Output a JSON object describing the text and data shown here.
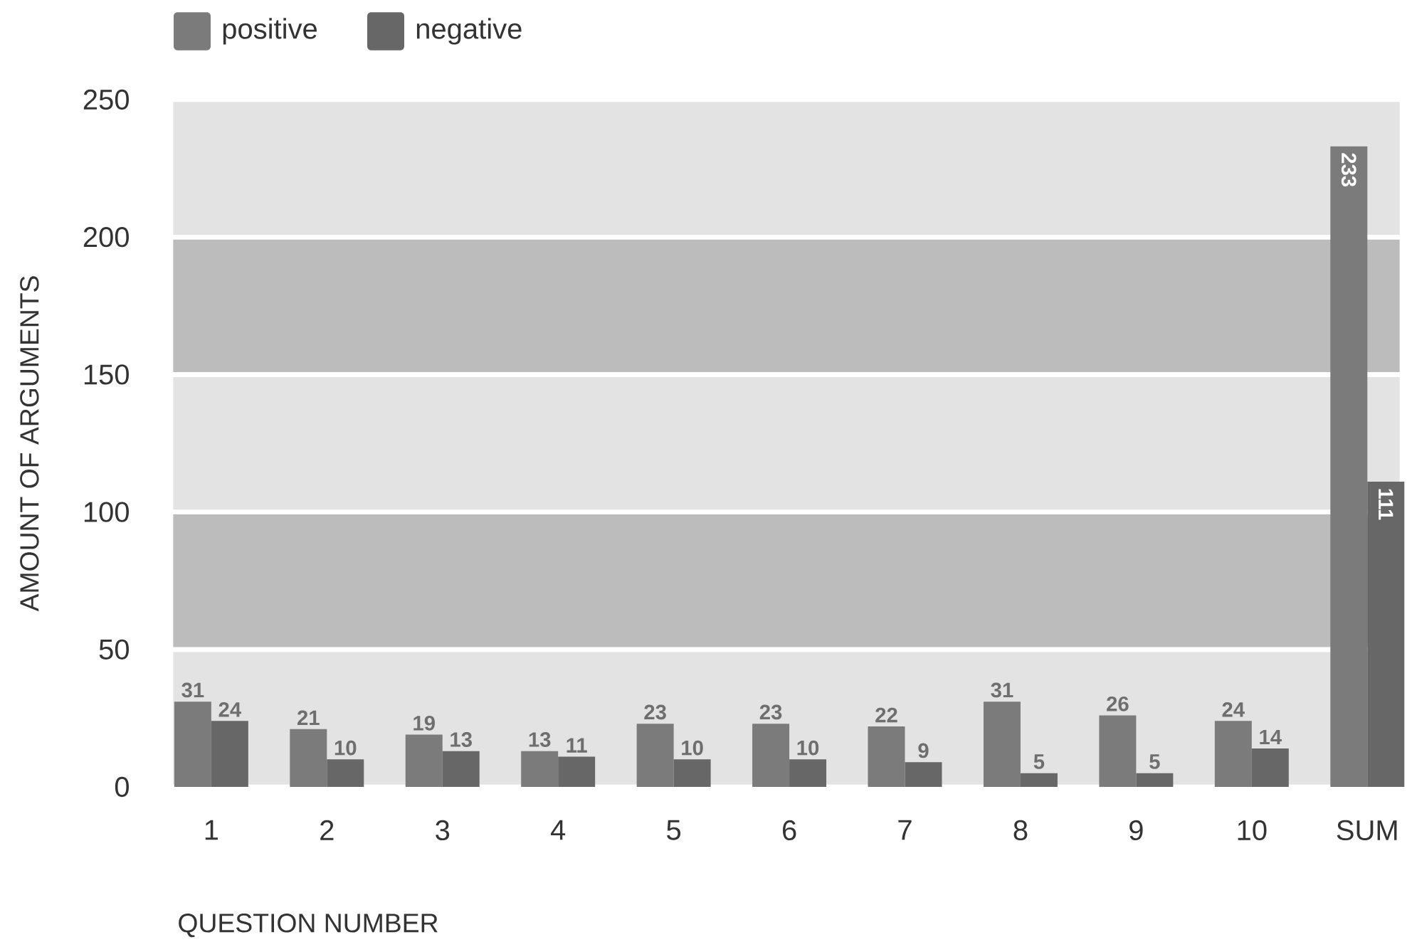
{
  "chart_data": {
    "type": "bar",
    "xlabel": "QUESTION NUMBER",
    "ylabel": "AMOUNT OF ARGUMENTS",
    "categories": [
      "1",
      "2",
      "3",
      "4",
      "5",
      "6",
      "7",
      "8",
      "9",
      "10",
      "SUM"
    ],
    "series": [
      {
        "name": "positive",
        "color": "#7b7b7b",
        "values": [
          31,
          21,
          19,
          13,
          23,
          23,
          22,
          31,
          26,
          24,
          233
        ]
      },
      {
        "name": "negative",
        "color": "#676767",
        "values": [
          24,
          10,
          13,
          11,
          10,
          10,
          9,
          5,
          5,
          14,
          111
        ]
      }
    ],
    "ylim": [
      0,
      250
    ],
    "yticks": [
      0,
      50,
      100,
      150,
      200,
      250
    ],
    "bands": [
      {
        "axis": "y",
        "from": 0,
        "to": 50,
        "color": "#e3e3e3"
      },
      {
        "axis": "y",
        "from": 50,
        "to": 100,
        "color": "#bcbcbc"
      },
      {
        "axis": "y",
        "from": 100,
        "to": 150,
        "color": "#e3e3e3"
      },
      {
        "axis": "y",
        "from": 150,
        "to": 200,
        "color": "#bcbcbc"
      },
      {
        "axis": "y",
        "from": 200,
        "to": 250,
        "color": "#e3e3e3"
      }
    ],
    "data_labels": true,
    "legend": "top left"
  }
}
